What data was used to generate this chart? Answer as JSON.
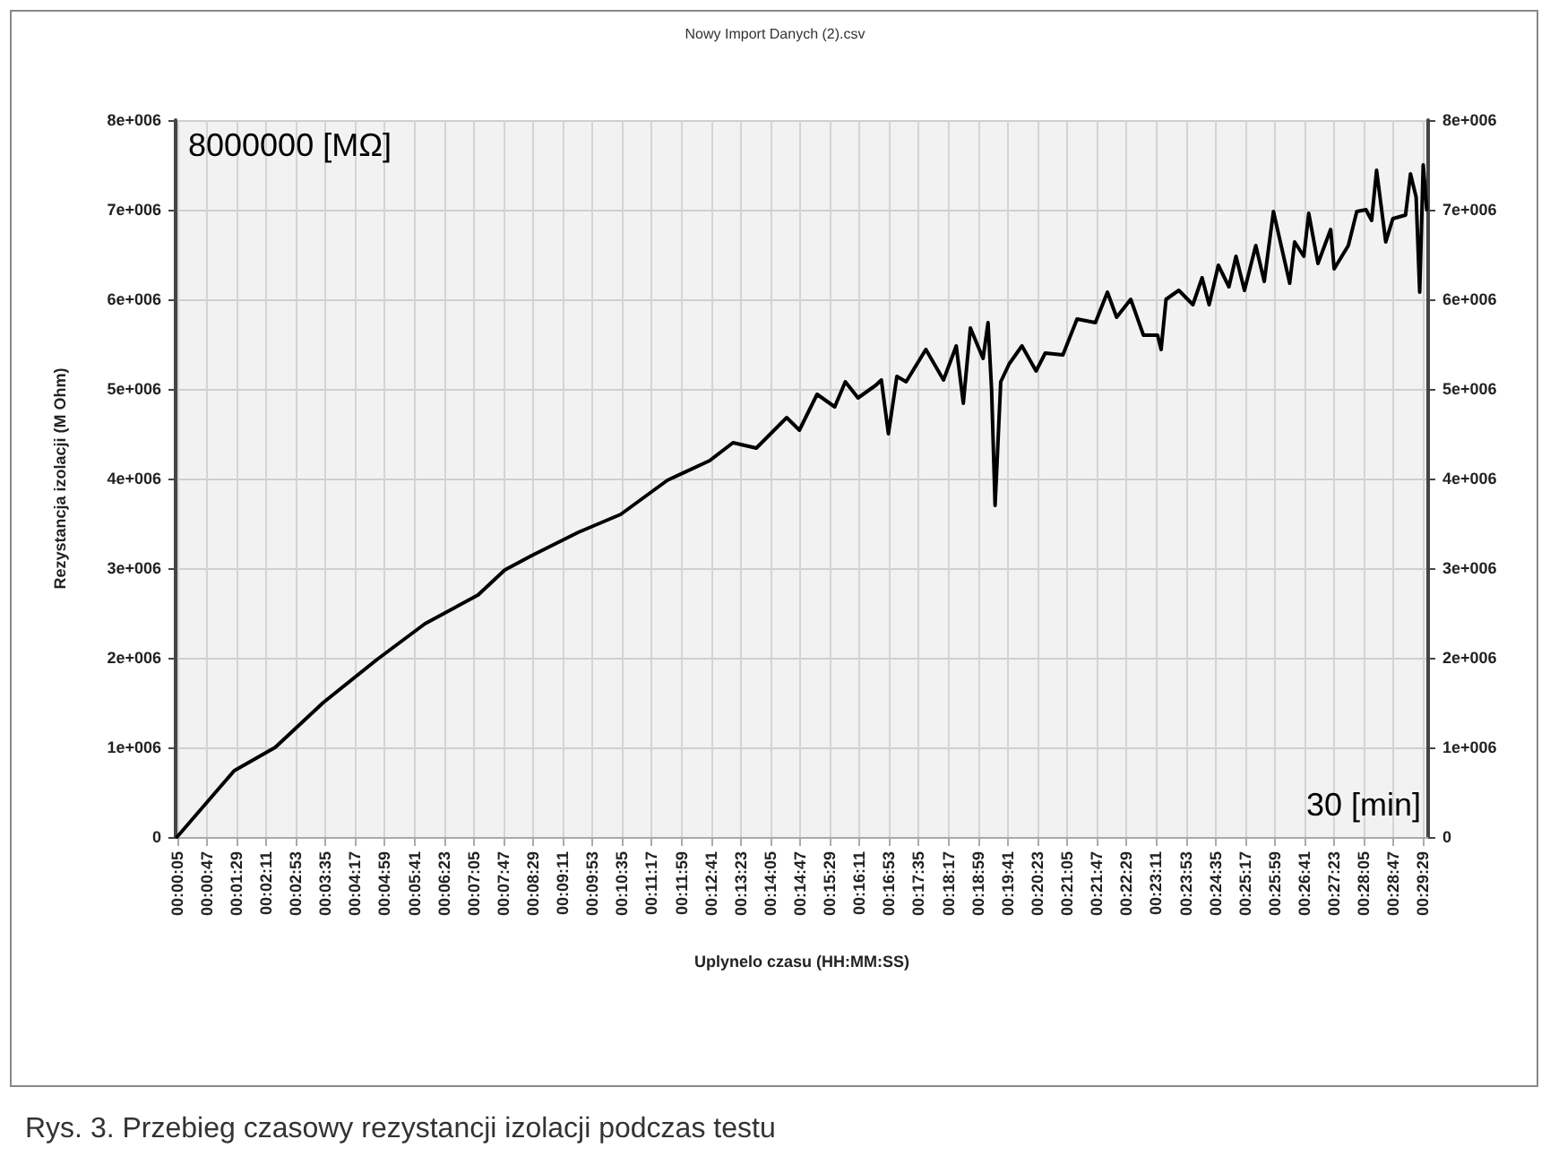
{
  "chart_data": {
    "type": "line",
    "title": "Nowy Import Danych (2).csv",
    "xlabel": "Uplynelo czasu (HH:MM:SS)",
    "ylabel": "Rezystancja izolacji (M Ohm)",
    "annotations": [
      "8000000 [MΩ]",
      "30 [min]",
      "Rys. 3. Przebieg czasowy rezystancji izolacji podczas testu"
    ],
    "x": [
      5,
      86,
      144,
      212,
      288,
      356,
      431,
      469,
      507,
      573,
      633,
      699,
      759,
      792,
      825,
      868,
      886,
      911,
      936,
      951,
      969,
      994,
      1002,
      1012,
      1024,
      1037,
      1065,
      1090,
      1108,
      1118,
      1128,
      1146,
      1153,
      1158,
      1163,
      1171,
      1183,
      1201,
      1221,
      1234,
      1259,
      1279,
      1305,
      1322,
      1335,
      1355,
      1373,
      1393,
      1398,
      1405,
      1423,
      1443,
      1456,
      1466,
      1479,
      1494,
      1504,
      1516,
      1532,
      1544,
      1557,
      1580,
      1587,
      1600,
      1607,
      1620,
      1638,
      1643,
      1663,
      1675,
      1688,
      1696,
      1703,
      1716,
      1726,
      1744,
      1751,
      1759,
      1764,
      1769,
      1774
    ],
    "series": [
      {
        "color": "#000000",
        "values": [
          0,
          740000,
          1000000,
          1500000,
          1980000,
          2380000,
          2700000,
          2980000,
          3140000,
          3400000,
          3600000,
          3980000,
          4200000,
          4400000,
          4340000,
          4680000,
          4540000,
          4940000,
          4800000,
          5080000,
          4900000,
          5040000,
          5100000,
          4500000,
          5140000,
          5080000,
          5440000,
          5100000,
          5480000,
          4840000,
          5680000,
          5340000,
          5740000,
          5000000,
          3700000,
          5080000,
          5280000,
          5480000,
          5200000,
          5400000,
          5380000,
          5780000,
          5740000,
          6080000,
          5800000,
          6000000,
          5600000,
          5600000,
          5440000,
          6000000,
          6100000,
          5940000,
          6240000,
          5940000,
          6380000,
          6140000,
          6480000,
          6100000,
          6600000,
          6200000,
          6980000,
          6180000,
          6640000,
          6480000,
          6960000,
          6400000,
          6780000,
          6340000,
          6600000,
          6980000,
          7000000,
          6880000,
          7440000,
          6640000,
          6900000,
          6940000,
          7400000,
          7140000,
          6080000,
          7500000,
          7000000
        ]
      }
    ],
    "xlim": [
      3,
      1776
    ],
    "xticks": [
      {
        "value": 5,
        "label": "00:00:05"
      },
      {
        "value": 47,
        "label": "00:00:47"
      },
      {
        "value": 89,
        "label": "00:01:29"
      },
      {
        "value": 131,
        "label": "00:02:11"
      },
      {
        "value": 173,
        "label": "00:02:53"
      },
      {
        "value": 215,
        "label": "00:03:35"
      },
      {
        "value": 257,
        "label": "00:04:17"
      },
      {
        "value": 299,
        "label": "00:04:59"
      },
      {
        "value": 341,
        "label": "00:05:41"
      },
      {
        "value": 383,
        "label": "00:06:23"
      },
      {
        "value": 425,
        "label": "00:07:05"
      },
      {
        "value": 467,
        "label": "00:07:47"
      },
      {
        "value": 509,
        "label": "00:08:29"
      },
      {
        "value": 551,
        "label": "00:09:11"
      },
      {
        "value": 593,
        "label": "00:09:53"
      },
      {
        "value": 635,
        "label": "00:10:35"
      },
      {
        "value": 677,
        "label": "00:11:17"
      },
      {
        "value": 719,
        "label": "00:11:59"
      },
      {
        "value": 761,
        "label": "00:12:41"
      },
      {
        "value": 803,
        "label": "00:13:23"
      },
      {
        "value": 845,
        "label": "00:14:05"
      },
      {
        "value": 887,
        "label": "00:14:47"
      },
      {
        "value": 929,
        "label": "00:15:29"
      },
      {
        "value": 971,
        "label": "00:16:11"
      },
      {
        "value": 1013,
        "label": "00:16:53"
      },
      {
        "value": 1055,
        "label": "00:17:35"
      },
      {
        "value": 1097,
        "label": "00:18:17"
      },
      {
        "value": 1139,
        "label": "00:18:59"
      },
      {
        "value": 1181,
        "label": "00:19:41"
      },
      {
        "value": 1223,
        "label": "00:20:23"
      },
      {
        "value": 1265,
        "label": "00:21:05"
      },
      {
        "value": 1307,
        "label": "00:21:47"
      },
      {
        "value": 1349,
        "label": "00:22:29"
      },
      {
        "value": 1391,
        "label": "00:23:11"
      },
      {
        "value": 1433,
        "label": "00:23:53"
      },
      {
        "value": 1475,
        "label": "00:24:35"
      },
      {
        "value": 1517,
        "label": "00:25:17"
      },
      {
        "value": 1559,
        "label": "00:25:59"
      },
      {
        "value": 1601,
        "label": "00:26:41"
      },
      {
        "value": 1643,
        "label": "00:27:23"
      },
      {
        "value": 1685,
        "label": "00:28:05"
      },
      {
        "value": 1727,
        "label": "00:28:47"
      },
      {
        "value": 1769,
        "label": "00:29:29"
      }
    ],
    "ylim": [
      0,
      8000000
    ],
    "yticks": [
      0,
      {
        "value": 1000000,
        "label": "1e+006"
      },
      {
        "value": 2000000,
        "label": "2e+006"
      },
      {
        "value": 3000000,
        "label": "3e+006"
      },
      {
        "value": 4000000,
        "label": "4e+006"
      },
      {
        "value": 5000000,
        "label": "5e+006"
      },
      {
        "value": 6000000,
        "label": "6e+006"
      },
      {
        "value": 7000000,
        "label": "7e+006"
      },
      {
        "value": 8000000,
        "label": "8e+006"
      }
    ],
    "y2lim": [
      0,
      8000000
    ],
    "y2ticks": [
      0,
      {
        "value": 1000000,
        "label": "1e+006"
      },
      {
        "value": 2000000,
        "label": "2e+006"
      },
      {
        "value": 3000000,
        "label": "3e+006"
      },
      {
        "value": 4000000,
        "label": "4e+006"
      },
      {
        "value": 5000000,
        "label": "5e+006"
      },
      {
        "value": 6000000,
        "label": "6e+006"
      },
      {
        "value": 7000000,
        "label": "7e+006"
      },
      {
        "value": 8000000,
        "label": "8e+006"
      }
    ],
    "grid": true,
    "marker": "none",
    "line_style": "solid"
  }
}
